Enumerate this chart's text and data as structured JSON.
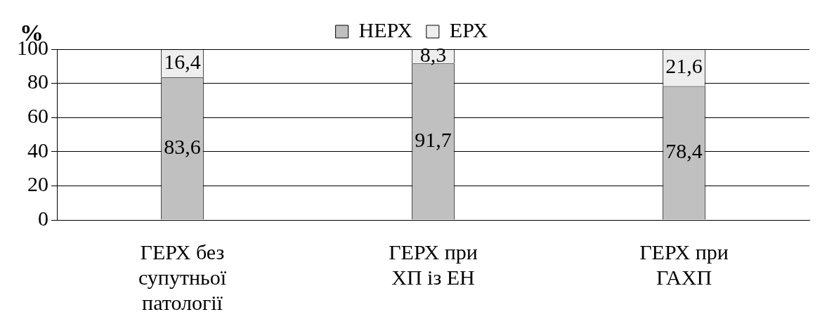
{
  "chart_data": {
    "type": "bar",
    "stacked": true,
    "ylabel": "%",
    "categories": [
      "ГЕРХ без супутньої патології",
      "ГЕРХ при ХП із ЕН",
      "ГЕРХ при ГАХП"
    ],
    "series": [
      {
        "name": "НЕРХ",
        "color": "#c0c0c0",
        "values": [
          83.6,
          91.7,
          78.4
        ],
        "value_labels": [
          "83,6",
          "91,7",
          "78,4"
        ]
      },
      {
        "name": "ЕРХ",
        "color": "#eeeeee",
        "values": [
          16.4,
          8.3,
          21.6
        ],
        "value_labels": [
          "16,4",
          "8,3",
          "21,6"
        ]
      }
    ],
    "ylim": [
      0,
      100
    ],
    "yticks": [
      0,
      20,
      40,
      60,
      80,
      100
    ],
    "grid": "y",
    "legend": "top"
  }
}
